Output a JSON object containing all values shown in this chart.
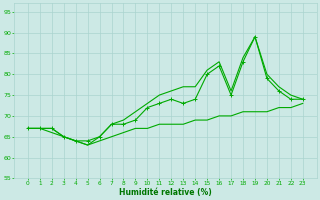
{
  "x": [
    0,
    1,
    2,
    3,
    4,
    5,
    6,
    7,
    8,
    9,
    10,
    11,
    12,
    13,
    14,
    15,
    16,
    17,
    18,
    19,
    20,
    21,
    22,
    23
  ],
  "line_main": [
    67,
    67,
    67,
    65,
    64,
    64,
    65,
    68,
    68,
    69,
    72,
    73,
    74,
    73,
    74,
    80,
    82,
    75,
    83,
    89,
    79,
    76,
    74,
    74
  ],
  "line_low": [
    67,
    67,
    66,
    65,
    64,
    63,
    64,
    65,
    66,
    67,
    67,
    68,
    68,
    68,
    69,
    69,
    70,
    70,
    71,
    71,
    71,
    72,
    72,
    73
  ],
  "line_high": [
    67,
    67,
    67,
    65,
    64,
    63,
    65,
    68,
    69,
    71,
    73,
    75,
    76,
    77,
    77,
    81,
    83,
    76,
    84,
    89,
    80,
    77,
    75,
    74
  ],
  "bg_color": "#cce9e5",
  "grid_color": "#aad4cf",
  "line_color": "#00aa00",
  "ylim": [
    55,
    97
  ],
  "yticks": [
    55,
    60,
    65,
    70,
    75,
    80,
    85,
    90,
    95
  ],
  "xticks": [
    0,
    1,
    2,
    3,
    4,
    5,
    6,
    7,
    8,
    9,
    10,
    11,
    12,
    13,
    14,
    15,
    16,
    17,
    18,
    19,
    20,
    21,
    22,
    23
  ],
  "xlabel": "Humidité relative (%)",
  "xlabel_color": "#007700"
}
